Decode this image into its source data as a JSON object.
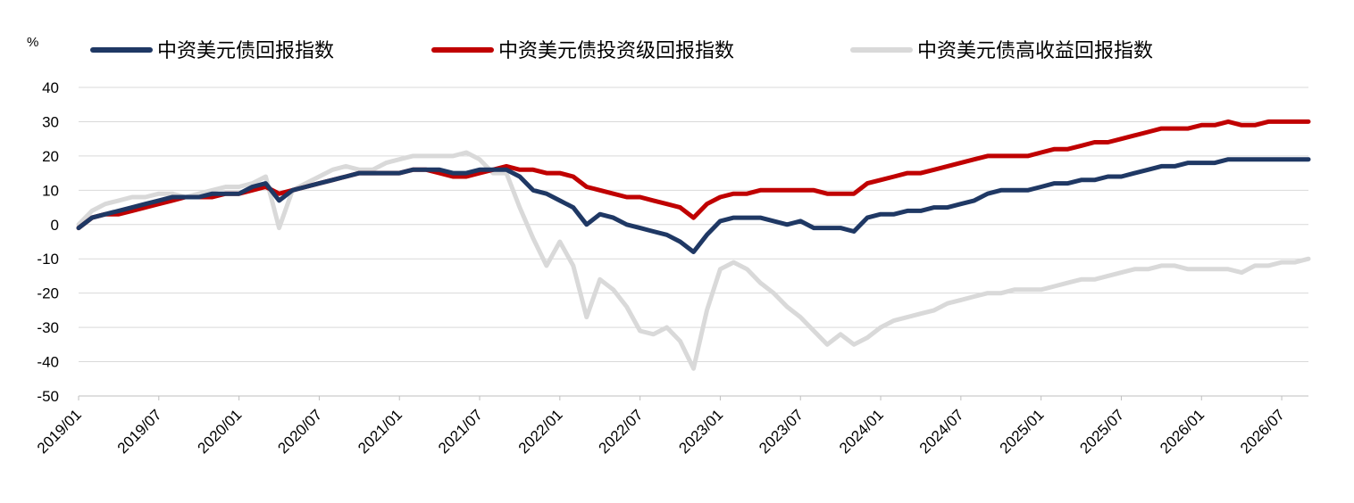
{
  "chart_data": {
    "type": "line",
    "unit_label": "%",
    "ylim": [
      -50,
      40
    ],
    "yticks": [
      40,
      30,
      20,
      10,
      0,
      -10,
      -20,
      -30,
      -40,
      -50
    ],
    "xlim": [
      "2019-01",
      "2026-09"
    ],
    "xticks": [
      "2019/01",
      "2019/07",
      "2020/01",
      "2020/07",
      "2021/01",
      "2021/07",
      "2022/01",
      "2022/07",
      "2023/01",
      "2023/07",
      "2024/01",
      "2024/07",
      "2025/01",
      "2025/07",
      "2026/01",
      "2026/07"
    ],
    "grid": "horizontal",
    "legend_position": "top",
    "series": [
      {
        "name": "中资美元债回报指数",
        "color": "#1f3864",
        "points": [
          [
            "2019-01",
            -1
          ],
          [
            "2019-02",
            2
          ],
          [
            "2019-03",
            3
          ],
          [
            "2019-04",
            4
          ],
          [
            "2019-05",
            5
          ],
          [
            "2019-06",
            6
          ],
          [
            "2019-07",
            7
          ],
          [
            "2019-08",
            8
          ],
          [
            "2019-09",
            8
          ],
          [
            "2019-10",
            8
          ],
          [
            "2019-11",
            9
          ],
          [
            "2019-12",
            9
          ],
          [
            "2020-01",
            9
          ],
          [
            "2020-02",
            11
          ],
          [
            "2020-03",
            12
          ],
          [
            "2020-04",
            7
          ],
          [
            "2020-05",
            10
          ],
          [
            "2020-06",
            11
          ],
          [
            "2020-07",
            12
          ],
          [
            "2020-08",
            13
          ],
          [
            "2020-09",
            14
          ],
          [
            "2020-10",
            15
          ],
          [
            "2020-11",
            15
          ],
          [
            "2020-12",
            15
          ],
          [
            "2021-01",
            15
          ],
          [
            "2021-02",
            16
          ],
          [
            "2021-03",
            16
          ],
          [
            "2021-04",
            16
          ],
          [
            "2021-05",
            15
          ],
          [
            "2021-06",
            15
          ],
          [
            "2021-07",
            16
          ],
          [
            "2021-08",
            16
          ],
          [
            "2021-09",
            16
          ],
          [
            "2021-10",
            14
          ],
          [
            "2021-11",
            10
          ],
          [
            "2021-12",
            9
          ],
          [
            "2022-01",
            7
          ],
          [
            "2022-02",
            5
          ],
          [
            "2022-03",
            0
          ],
          [
            "2022-04",
            3
          ],
          [
            "2022-05",
            2
          ],
          [
            "2022-06",
            0
          ],
          [
            "2022-07",
            -1
          ],
          [
            "2022-08",
            -2
          ],
          [
            "2022-09",
            -3
          ],
          [
            "2022-10",
            -5
          ],
          [
            "2022-11",
            -8
          ],
          [
            "2022-12",
            -3
          ],
          [
            "2023-01",
            1
          ],
          [
            "2023-02",
            2
          ],
          [
            "2023-03",
            2
          ],
          [
            "2023-04",
            2
          ],
          [
            "2023-05",
            1
          ],
          [
            "2023-06",
            0
          ],
          [
            "2023-07",
            1
          ],
          [
            "2023-08",
            -1
          ],
          [
            "2023-09",
            -1
          ],
          [
            "2023-10",
            -1
          ],
          [
            "2023-11",
            -2
          ],
          [
            "2023-12",
            2
          ],
          [
            "2024-01",
            3
          ],
          [
            "2024-02",
            3
          ],
          [
            "2024-03",
            4
          ],
          [
            "2024-04",
            4
          ],
          [
            "2024-05",
            5
          ],
          [
            "2024-06",
            5
          ],
          [
            "2024-07",
            6
          ],
          [
            "2024-08",
            7
          ],
          [
            "2024-09",
            9
          ],
          [
            "2024-10",
            10
          ],
          [
            "2024-11",
            10
          ],
          [
            "2024-12",
            10
          ],
          [
            "2025-01",
            11
          ],
          [
            "2025-02",
            12
          ],
          [
            "2025-03",
            12
          ],
          [
            "2025-04",
            13
          ],
          [
            "2025-05",
            13
          ],
          [
            "2025-06",
            14
          ],
          [
            "2025-07",
            14
          ],
          [
            "2025-08",
            15
          ],
          [
            "2025-09",
            16
          ],
          [
            "2025-10",
            17
          ],
          [
            "2025-11",
            17
          ],
          [
            "2025-12",
            18
          ],
          [
            "2026-01",
            18
          ],
          [
            "2026-02",
            18
          ],
          [
            "2026-03",
            19
          ],
          [
            "2026-04",
            19
          ],
          [
            "2026-05",
            19
          ],
          [
            "2026-06",
            19
          ],
          [
            "2026-07",
            19
          ],
          [
            "2026-08",
            19
          ],
          [
            "2026-09",
            19
          ]
        ]
      },
      {
        "name": "中资美元债投资级回报指数",
        "color": "#c00000",
        "points": [
          [
            "2019-01",
            -1
          ],
          [
            "2019-02",
            2
          ],
          [
            "2019-03",
            3
          ],
          [
            "2019-04",
            3
          ],
          [
            "2019-05",
            4
          ],
          [
            "2019-06",
            5
          ],
          [
            "2019-07",
            6
          ],
          [
            "2019-08",
            7
          ],
          [
            "2019-09",
            8
          ],
          [
            "2019-10",
            8
          ],
          [
            "2019-11",
            8
          ],
          [
            "2019-12",
            9
          ],
          [
            "2020-01",
            9
          ],
          [
            "2020-02",
            10
          ],
          [
            "2020-03",
            11
          ],
          [
            "2020-04",
            9
          ],
          [
            "2020-05",
            10
          ],
          [
            "2020-06",
            11
          ],
          [
            "2020-07",
            12
          ],
          [
            "2020-08",
            13
          ],
          [
            "2020-09",
            14
          ],
          [
            "2020-10",
            15
          ],
          [
            "2020-11",
            15
          ],
          [
            "2020-12",
            15
          ],
          [
            "2021-01",
            15
          ],
          [
            "2021-02",
            16
          ],
          [
            "2021-03",
            16
          ],
          [
            "2021-04",
            15
          ],
          [
            "2021-05",
            14
          ],
          [
            "2021-06",
            14
          ],
          [
            "2021-07",
            15
          ],
          [
            "2021-08",
            16
          ],
          [
            "2021-09",
            17
          ],
          [
            "2021-10",
            16
          ],
          [
            "2021-11",
            16
          ],
          [
            "2021-12",
            15
          ],
          [
            "2022-01",
            15
          ],
          [
            "2022-02",
            14
          ],
          [
            "2022-03",
            11
          ],
          [
            "2022-04",
            10
          ],
          [
            "2022-05",
            9
          ],
          [
            "2022-06",
            8
          ],
          [
            "2022-07",
            8
          ],
          [
            "2022-08",
            7
          ],
          [
            "2022-09",
            6
          ],
          [
            "2022-10",
            5
          ],
          [
            "2022-11",
            2
          ],
          [
            "2022-12",
            6
          ],
          [
            "2023-01",
            8
          ],
          [
            "2023-02",
            9
          ],
          [
            "2023-03",
            9
          ],
          [
            "2023-04",
            10
          ],
          [
            "2023-05",
            10
          ],
          [
            "2023-06",
            10
          ],
          [
            "2023-07",
            10
          ],
          [
            "2023-08",
            10
          ],
          [
            "2023-09",
            9
          ],
          [
            "2023-10",
            9
          ],
          [
            "2023-11",
            9
          ],
          [
            "2023-12",
            12
          ],
          [
            "2024-01",
            13
          ],
          [
            "2024-02",
            14
          ],
          [
            "2024-03",
            15
          ],
          [
            "2024-04",
            15
          ],
          [
            "2024-05",
            16
          ],
          [
            "2024-06",
            17
          ],
          [
            "2024-07",
            18
          ],
          [
            "2024-08",
            19
          ],
          [
            "2024-09",
            20
          ],
          [
            "2024-10",
            20
          ],
          [
            "2024-11",
            20
          ],
          [
            "2024-12",
            20
          ],
          [
            "2025-01",
            21
          ],
          [
            "2025-02",
            22
          ],
          [
            "2025-03",
            22
          ],
          [
            "2025-04",
            23
          ],
          [
            "2025-05",
            24
          ],
          [
            "2025-06",
            24
          ],
          [
            "2025-07",
            25
          ],
          [
            "2025-08",
            26
          ],
          [
            "2025-09",
            27
          ],
          [
            "2025-10",
            28
          ],
          [
            "2025-11",
            28
          ],
          [
            "2025-12",
            28
          ],
          [
            "2026-01",
            29
          ],
          [
            "2026-02",
            29
          ],
          [
            "2026-03",
            30
          ],
          [
            "2026-04",
            29
          ],
          [
            "2026-05",
            29
          ],
          [
            "2026-06",
            30
          ],
          [
            "2026-07",
            30
          ],
          [
            "2026-08",
            30
          ],
          [
            "2026-09",
            30
          ]
        ]
      },
      {
        "name": "中资美元债高收益回报指数",
        "color": "#d9d9d9",
        "points": [
          [
            "2019-01",
            0
          ],
          [
            "2019-02",
            4
          ],
          [
            "2019-03",
            6
          ],
          [
            "2019-04",
            7
          ],
          [
            "2019-05",
            8
          ],
          [
            "2019-06",
            8
          ],
          [
            "2019-07",
            9
          ],
          [
            "2019-08",
            9
          ],
          [
            "2019-09",
            8
          ],
          [
            "2019-10",
            9
          ],
          [
            "2019-11",
            10
          ],
          [
            "2019-12",
            11
          ],
          [
            "2020-01",
            11
          ],
          [
            "2020-02",
            12
          ],
          [
            "2020-03",
            14
          ],
          [
            "2020-04",
            -1
          ],
          [
            "2020-05",
            10
          ],
          [
            "2020-06",
            12
          ],
          [
            "2020-07",
            14
          ],
          [
            "2020-08",
            16
          ],
          [
            "2020-09",
            17
          ],
          [
            "2020-10",
            16
          ],
          [
            "2020-11",
            16
          ],
          [
            "2020-12",
            18
          ],
          [
            "2021-01",
            19
          ],
          [
            "2021-02",
            20
          ],
          [
            "2021-03",
            20
          ],
          [
            "2021-04",
            20
          ],
          [
            "2021-05",
            20
          ],
          [
            "2021-06",
            21
          ],
          [
            "2021-07",
            19
          ],
          [
            "2021-08",
            15
          ],
          [
            "2021-09",
            15
          ],
          [
            "2021-10",
            5
          ],
          [
            "2021-11",
            -4
          ],
          [
            "2021-12",
            -12
          ],
          [
            "2022-01",
            -5
          ],
          [
            "2022-02",
            -12
          ],
          [
            "2022-03",
            -27
          ],
          [
            "2022-04",
            -16
          ],
          [
            "2022-05",
            -19
          ],
          [
            "2022-06",
            -24
          ],
          [
            "2022-07",
            -31
          ],
          [
            "2022-08",
            -32
          ],
          [
            "2022-09",
            -30
          ],
          [
            "2022-10",
            -34
          ],
          [
            "2022-11",
            -42
          ],
          [
            "2022-12",
            -25
          ],
          [
            "2023-01",
            -13
          ],
          [
            "2023-02",
            -11
          ],
          [
            "2023-03",
            -13
          ],
          [
            "2023-04",
            -17
          ],
          [
            "2023-05",
            -20
          ],
          [
            "2023-06",
            -24
          ],
          [
            "2023-07",
            -27
          ],
          [
            "2023-08",
            -31
          ],
          [
            "2023-09",
            -35
          ],
          [
            "2023-10",
            -32
          ],
          [
            "2023-11",
            -35
          ],
          [
            "2023-12",
            -33
          ],
          [
            "2024-01",
            -30
          ],
          [
            "2024-02",
            -28
          ],
          [
            "2024-03",
            -27
          ],
          [
            "2024-04",
            -26
          ],
          [
            "2024-05",
            -25
          ],
          [
            "2024-06",
            -23
          ],
          [
            "2024-07",
            -22
          ],
          [
            "2024-08",
            -21
          ],
          [
            "2024-09",
            -20
          ],
          [
            "2024-10",
            -20
          ],
          [
            "2024-11",
            -19
          ],
          [
            "2024-12",
            -19
          ],
          [
            "2025-01",
            -19
          ],
          [
            "2025-02",
            -18
          ],
          [
            "2025-03",
            -17
          ],
          [
            "2025-04",
            -16
          ],
          [
            "2025-05",
            -16
          ],
          [
            "2025-06",
            -15
          ],
          [
            "2025-07",
            -14
          ],
          [
            "2025-08",
            -13
          ],
          [
            "2025-09",
            -13
          ],
          [
            "2025-10",
            -12
          ],
          [
            "2025-11",
            -12
          ],
          [
            "2025-12",
            -13
          ],
          [
            "2026-01",
            -13
          ],
          [
            "2026-02",
            -13
          ],
          [
            "2026-03",
            -13
          ],
          [
            "2026-04",
            -14
          ],
          [
            "2026-05",
            -12
          ],
          [
            "2026-06",
            -12
          ],
          [
            "2026-07",
            -11
          ],
          [
            "2026-08",
            -11
          ],
          [
            "2026-09",
            -10
          ]
        ]
      }
    ]
  }
}
